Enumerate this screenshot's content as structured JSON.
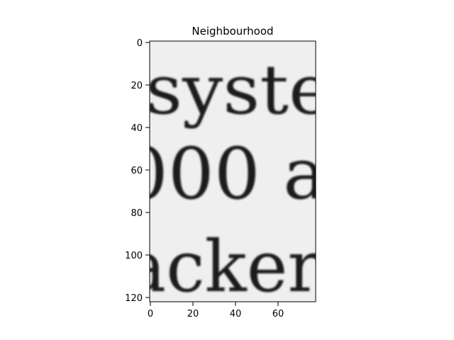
{
  "figure": {
    "title": "Neighbourhood",
    "image_text_lines": [
      "syste",
      "000 a",
      "acker"
    ],
    "x_ticks": [
      "0",
      "20",
      "40",
      "60"
    ],
    "y_ticks": [
      "0",
      "20",
      "40",
      "60",
      "80",
      "100",
      "120"
    ],
    "image_background": "#efefef",
    "ink_color": "#1a1a1a"
  }
}
